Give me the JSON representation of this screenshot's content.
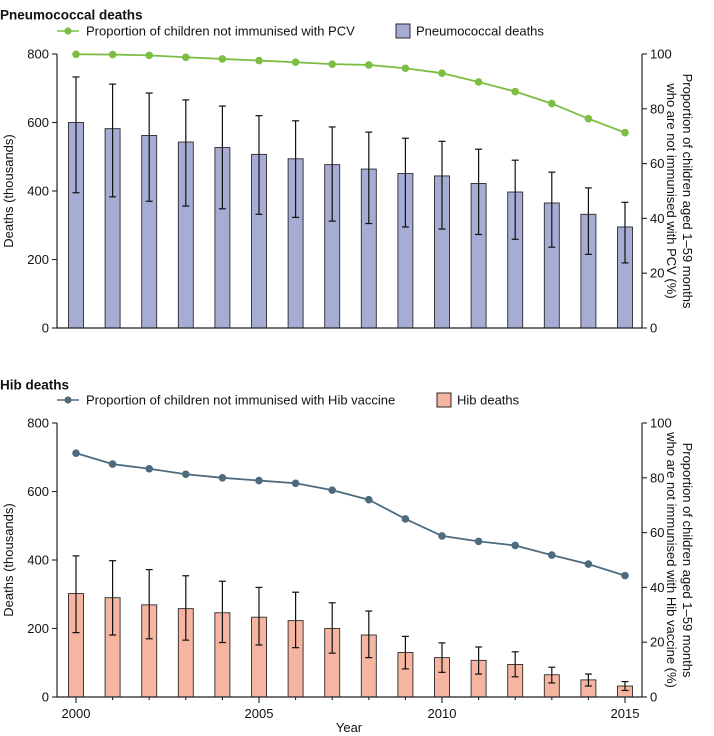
{
  "chart_data": [
    {
      "type": "bar",
      "title": "Pneumococcal deaths",
      "xlabel": "",
      "ylabel": "Deaths (thousands)",
      "y2label": [
        "Proportion of children aged 1–59 months",
        "who are not immunised with PCV (%)"
      ],
      "categories": [
        2000,
        2001,
        2002,
        2003,
        2004,
        2005,
        2006,
        2007,
        2008,
        2009,
        2010,
        2011,
        2012,
        2013,
        2014,
        2015
      ],
      "ylim": [
        0,
        800
      ],
      "y2lim": [
        0,
        100
      ],
      "yticks": [
        0,
        200,
        400,
        600,
        800
      ],
      "y2ticks": [
        0,
        20,
        40,
        60,
        80,
        100
      ],
      "legend": "top",
      "grid": false,
      "series": [
        {
          "name": "Pneumococcal deaths",
          "kind": "bar",
          "axis": "left",
          "values": [
            600,
            582,
            562,
            543,
            527,
            507,
            494,
            477,
            464,
            451,
            444,
            422,
            397,
            365,
            332,
            295
          ],
          "error_upper": [
            733,
            712,
            686,
            666,
            648,
            620,
            605,
            587,
            572,
            554,
            545,
            522,
            490,
            455,
            409,
            367
          ],
          "error_lower": [
            395,
            383,
            370,
            356,
            348,
            332,
            323,
            312,
            305,
            295,
            289,
            273,
            259,
            236,
            215,
            190
          ]
        },
        {
          "name": "Proportion of children not immunised with PCV",
          "kind": "line",
          "axis": "right",
          "values": [
            99.9,
            99.8,
            99.5,
            98.8,
            98.2,
            97.6,
            97.0,
            96.3,
            96.0,
            94.8,
            93.0,
            89.8,
            86.3,
            81.9,
            76.4,
            71.3
          ]
        }
      ]
    },
    {
      "type": "bar",
      "title": "Hib deaths",
      "xlabel": "Year",
      "ylabel": "Deaths (thousands)",
      "y2label": [
        "Proportion of children aged 1–59 months",
        "who are not immunised with Hib vaccine (%)"
      ],
      "categories": [
        2000,
        2001,
        2002,
        2003,
        2004,
        2005,
        2006,
        2007,
        2008,
        2009,
        2010,
        2011,
        2012,
        2013,
        2014,
        2015
      ],
      "xticks": [
        2000,
        2005,
        2010,
        2015
      ],
      "ylim": [
        0,
        800
      ],
      "y2lim": [
        0,
        100
      ],
      "yticks": [
        0,
        200,
        400,
        600,
        800
      ],
      "y2ticks": [
        0,
        20,
        40,
        60,
        80,
        100
      ],
      "legend": "top",
      "grid": false,
      "series": [
        {
          "name": "Hib deaths",
          "kind": "bar",
          "axis": "left",
          "values": [
            302,
            290,
            269,
            258,
            246,
            233,
            223,
            200,
            181,
            130,
            115,
            107,
            95,
            65,
            50,
            32
          ],
          "error_upper": [
            412,
            398,
            372,
            354,
            338,
            320,
            306,
            275,
            251,
            177,
            158,
            146,
            132,
            87,
            67,
            45
          ],
          "error_lower": [
            188,
            181,
            170,
            166,
            159,
            152,
            144,
            128,
            115,
            82,
            72,
            67,
            59,
            41,
            32,
            19
          ]
        },
        {
          "name": "Proportion of children not immunised with Hib vaccine",
          "kind": "line",
          "axis": "right",
          "values": [
            89.0,
            85.0,
            83.3,
            81.3,
            80.0,
            79.0,
            78.0,
            75.5,
            72.0,
            65.0,
            58.8,
            56.8,
            55.3,
            51.8,
            48.5,
            44.3
          ]
        }
      ]
    }
  ],
  "colors": {
    "pcv_line": "#7cbd43",
    "pneumo_bar": "#a7acd4",
    "hib_line": "#4e6b7e",
    "hib_bar": "#f5b5a1",
    "bar_edge": "#2b2b2b",
    "axis": "#222222"
  }
}
